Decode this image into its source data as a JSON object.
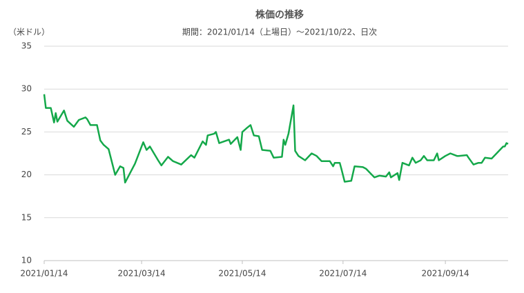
{
  "chart_data": {
    "type": "line",
    "title": "株価の推移",
    "subtitle": "期間：2021/01/14（上場日）～2021/10/22、日次",
    "y_label": "（米ドル）",
    "x": [
      "2021/01/14",
      "2021/01/15",
      "2021/01/18",
      "2021/01/20",
      "2021/01/21",
      "2021/01/22",
      "2021/01/26",
      "2021/01/28",
      "2021/02/01",
      "2021/02/04",
      "2021/02/08",
      "2021/02/09",
      "2021/02/11",
      "2021/02/15",
      "2021/02/17",
      "2021/02/19",
      "2021/02/22",
      "2021/02/26",
      "2021/03/01",
      "2021/03/03",
      "2021/03/04",
      "2021/03/10",
      "2021/03/15",
      "2021/03/17",
      "2021/03/19",
      "2021/03/24",
      "2021/03/26",
      "2021/03/30",
      "2021/04/02",
      "2021/04/07",
      "2021/04/13",
      "2021/04/15",
      "2021/04/20",
      "2021/04/22",
      "2021/04/23",
      "2021/04/27",
      "2021/04/28",
      "2021/04/30",
      "2021/05/06",
      "2021/05/07",
      "2021/05/11",
      "2021/05/13",
      "2021/05/14",
      "2021/05/17",
      "2021/05/19",
      "2021/05/21",
      "2021/05/24",
      "2021/05/26",
      "2021/05/31",
      "2021/06/02",
      "2021/06/07",
      "2021/06/08",
      "2021/06/09",
      "2021/06/11",
      "2021/06/14",
      "2021/06/15",
      "2021/06/17",
      "2021/06/21",
      "2021/06/25",
      "2021/06/28",
      "2021/07/01",
      "2021/07/06",
      "2021/07/08",
      "2021/07/09",
      "2021/07/12",
      "2021/07/13",
      "2021/07/15",
      "2021/07/19",
      "2021/07/21",
      "2021/07/26",
      "2021/07/28",
      "2021/07/30",
      "2021/08/02",
      "2021/08/05",
      "2021/08/09",
      "2021/08/11",
      "2021/08/12",
      "2021/08/16",
      "2021/08/17",
      "2021/08/19",
      "2021/08/23",
      "2021/08/25",
      "2021/08/27",
      "2021/08/30",
      "2021/09/01",
      "2021/09/03",
      "2021/09/07",
      "2021/09/09",
      "2021/09/10",
      "2021/09/14",
      "2021/09/17",
      "2021/09/21",
      "2021/09/22",
      "2021/09/27",
      "2021/09/28",
      "2021/10/01",
      "2021/10/04",
      "2021/10/06",
      "2021/10/08",
      "2021/10/12",
      "2021/10/15",
      "2021/10/19",
      "2021/10/20",
      "2021/10/21",
      "2021/10/22"
    ],
    "values": [
      29.4,
      27.8,
      27.8,
      26.1,
      27.2,
      26.2,
      27.5,
      26.3,
      25.6,
      26.4,
      26.7,
      26.5,
      25.8,
      25.8,
      24.0,
      23.5,
      23.0,
      20.0,
      21.0,
      20.8,
      19.1,
      21.3,
      23.8,
      22.9,
      23.3,
      21.7,
      21.1,
      22.1,
      21.6,
      21.2,
      22.3,
      22.0,
      23.9,
      23.5,
      24.6,
      24.8,
      25.0,
      23.7,
      24.1,
      23.6,
      24.4,
      22.9,
      25.0,
      25.5,
      25.8,
      24.6,
      24.5,
      22.9,
      22.8,
      22.0,
      22.1,
      24.1,
      23.5,
      24.8,
      28.1,
      22.8,
      22.2,
      21.7,
      22.5,
      22.2,
      21.6,
      21.6,
      21.0,
      21.4,
      21.4,
      20.7,
      19.2,
      19.3,
      21.0,
      20.9,
      20.7,
      20.3,
      19.7,
      19.9,
      19.8,
      20.3,
      19.7,
      20.2,
      19.4,
      21.4,
      21.1,
      22.0,
      21.4,
      21.7,
      22.2,
      21.7,
      21.7,
      22.5,
      21.7,
      22.2,
      22.5,
      22.2,
      22.2,
      22.3,
      22.0,
      21.2,
      21.4,
      21.4,
      22.0,
      21.9,
      22.5,
      23.3,
      23.3,
      23.7,
      23.6
    ],
    "color": "#14a84a",
    "xlim": [
      "2021/01/14",
      "2021/10/22"
    ],
    "xticks": [
      "2021/01/14",
      "2021/03/14",
      "2021/05/14",
      "2021/07/14",
      "2021/09/14"
    ],
    "ylim": [
      10,
      35
    ],
    "yticks": [
      10,
      15,
      20,
      25,
      30,
      35
    ],
    "grid": true
  }
}
